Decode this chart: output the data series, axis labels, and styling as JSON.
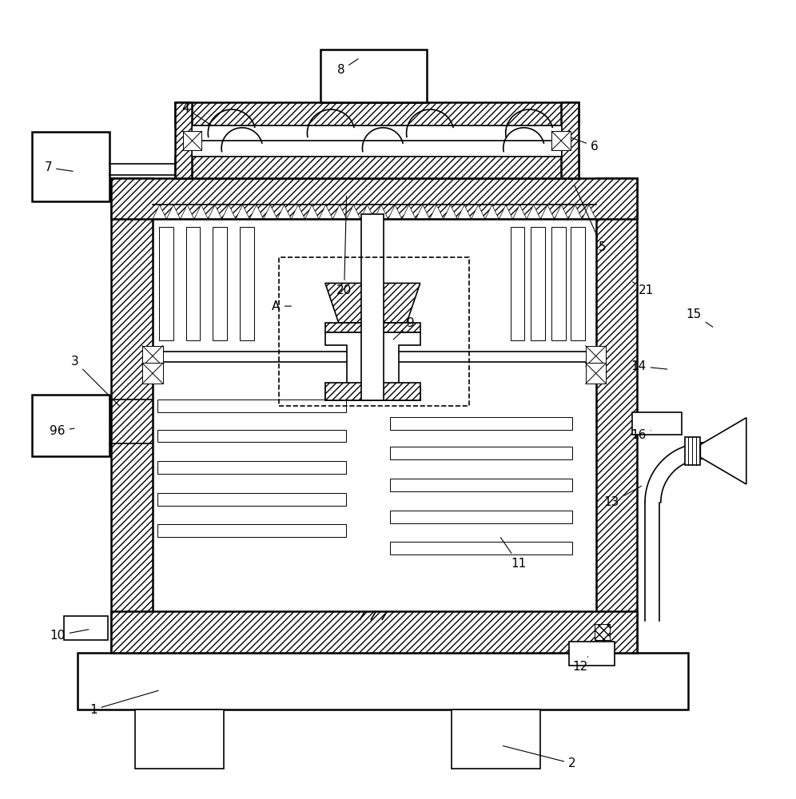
{
  "bg_color": "#ffffff",
  "fig_width": 9.96,
  "fig_height": 10.0,
  "label_fontsize": 11,
  "leaders": {
    "1": {
      "tp": [
        0.115,
        0.108
      ],
      "ap": [
        0.2,
        0.133
      ]
    },
    "2": {
      "tp": [
        0.72,
        0.04
      ],
      "ap": [
        0.63,
        0.063
      ]
    },
    "3": {
      "tp": [
        0.092,
        0.548
      ],
      "ap": [
        0.15,
        0.49
      ]
    },
    "4": {
      "tp": [
        0.232,
        0.868
      ],
      "ap": [
        0.268,
        0.844
      ]
    },
    "5": {
      "tp": [
        0.758,
        0.692
      ],
      "ap": [
        0.722,
        0.773
      ]
    },
    "6": {
      "tp": [
        0.748,
        0.82
      ],
      "ap": [
        0.716,
        0.832
      ]
    },
    "7": {
      "tp": [
        0.058,
        0.793
      ],
      "ap": [
        0.092,
        0.788
      ]
    },
    "8": {
      "tp": [
        0.428,
        0.916
      ],
      "ap": [
        0.452,
        0.932
      ]
    },
    "9": {
      "tp": [
        0.516,
        0.596
      ],
      "ap": [
        0.492,
        0.574
      ]
    },
    "10": {
      "tp": [
        0.07,
        0.202
      ],
      "ap": [
        0.112,
        0.21
      ]
    },
    "11": {
      "tp": [
        0.652,
        0.293
      ],
      "ap": [
        0.628,
        0.328
      ]
    },
    "12": {
      "tp": [
        0.73,
        0.162
      ],
      "ap": [
        0.74,
        0.175
      ]
    },
    "13": {
      "tp": [
        0.77,
        0.37
      ],
      "ap": [
        0.81,
        0.392
      ]
    },
    "14": {
      "tp": [
        0.804,
        0.542
      ],
      "ap": [
        0.843,
        0.538
      ]
    },
    "15": {
      "tp": [
        0.874,
        0.608
      ],
      "ap": [
        0.9,
        0.59
      ]
    },
    "16": {
      "tp": [
        0.804,
        0.455
      ],
      "ap": [
        0.822,
        0.462
      ]
    },
    "20": {
      "tp": [
        0.432,
        0.638
      ],
      "ap": [
        0.435,
        0.76
      ]
    },
    "21": {
      "tp": [
        0.814,
        0.638
      ],
      "ap": [
        0.794,
        0.65
      ]
    },
    "96": {
      "tp": [
        0.07,
        0.46
      ],
      "ap": [
        0.094,
        0.464
      ]
    },
    "A": {
      "tp": [
        0.346,
        0.618
      ],
      "ap": [
        0.368,
        0.618
      ]
    }
  }
}
